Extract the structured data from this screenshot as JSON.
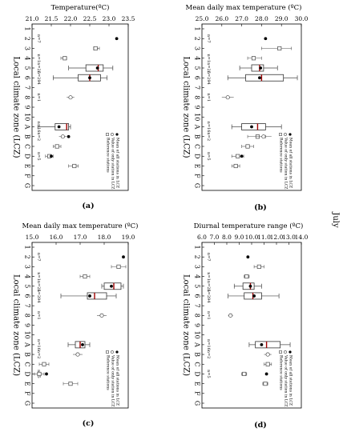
{
  "side_label": "July",
  "x_tick_labels": [
    "1",
    "2",
    "3",
    "4",
    "5",
    "6",
    "7",
    "8",
    "9",
    "10",
    "A",
    "B",
    "C",
    "D",
    "E",
    "F",
    "G"
  ],
  "chart_data": [
    {
      "type": "boxplot",
      "panel": "(a)",
      "ylabel": "Temperature(ºC)",
      "xlabel": "Local climate zone (LCZ)",
      "yticks": [
        "21.0",
        "21.5",
        "22.0",
        "22.5",
        "23.0",
        "23.5"
      ],
      "ylim": [
        21.0,
        23.5
      ],
      "legend": [
        "Mean of all stations in LCZ",
        "Value of only station in LCZ",
        "Reference stations"
      ],
      "n_labels": [
        {
          "x": "2",
          "text": "n=7"
        },
        {
          "x": "4",
          "text": "n=1"
        },
        {
          "x": "5",
          "text": "n=25"
        },
        {
          "x": "6",
          "text": "n=294"
        },
        {
          "x": "8",
          "text": "n=1"
        },
        {
          "x": "A",
          "text": "n=16"
        },
        {
          "x": "B",
          "text": "n=2"
        },
        {
          "x": "D",
          "text": "n=5"
        }
      ],
      "boxes": [
        {
          "x": "5",
          "q1": 22.4,
          "median": 22.72,
          "q3": 22.85,
          "wmin": 21.95,
          "wmax": 23.1
        },
        {
          "x": "6",
          "q1": 22.2,
          "median": 22.5,
          "q3": 22.78,
          "wmin": 21.55,
          "wmax": 22.95
        },
        {
          "x": "A",
          "q1": 21.6,
          "median": 21.9,
          "q3": 21.95,
          "wmin": 21.15,
          "wmax": 22.0
        }
      ],
      "means": [
        {
          "x": "2",
          "value": 23.2
        },
        {
          "x": "5",
          "value": 22.7
        },
        {
          "x": "6",
          "value": 22.5
        },
        {
          "x": "A",
          "value": 21.7
        },
        {
          "x": "B",
          "value": 21.95
        },
        {
          "x": "D",
          "value": 21.5
        }
      ],
      "singles": [
        {
          "x": "8",
          "value": 22.0,
          "lo": 21.9,
          "hi": 22.1
        },
        {
          "x": "B",
          "value": 21.8,
          "lo": 21.7,
          "hi": 21.9
        }
      ],
      "references": [
        {
          "x": "3",
          "value": 22.65,
          "lo": 22.6,
          "hi": 22.75
        },
        {
          "x": "4",
          "value": 21.85,
          "lo": 21.75,
          "hi": 21.9
        },
        {
          "x": "C",
          "value": 21.65,
          "lo": 21.55,
          "hi": 21.75
        },
        {
          "x": "D",
          "value": 21.45,
          "lo": 21.35,
          "hi": 21.55
        },
        {
          "x": "E",
          "value": 22.1,
          "lo": 21.95,
          "hi": 22.2
        }
      ]
    },
    {
      "type": "boxplot",
      "panel": "(b)",
      "ylabel": "Mean daily max temperature (ºC)",
      "xlabel": "Local climate zone (LCZ)",
      "yticks": [
        "25.0",
        "26.0",
        "27.0",
        "28.0",
        "29.0",
        "30.0"
      ],
      "ylim": [
        25.0,
        30.0
      ],
      "legend": [
        "Mean of all stations in LCZ",
        "Value of only station in LCZ",
        "Reference stations"
      ],
      "n_labels": [
        {
          "x": "2",
          "text": "n=7"
        },
        {
          "x": "4",
          "text": "n=1"
        },
        {
          "x": "5",
          "text": "n=25"
        },
        {
          "x": "6",
          "text": "n=294"
        },
        {
          "x": "8",
          "text": "n=1"
        },
        {
          "x": "A",
          "text": "n=16"
        },
        {
          "x": "B",
          "text": "n=2"
        },
        {
          "x": "D",
          "text": "n=5"
        }
      ],
      "boxes": [
        {
          "x": "5",
          "q1": 27.5,
          "median": 27.9,
          "q3": 28.1,
          "wmin": 26.9,
          "wmax": 28.8
        },
        {
          "x": "6",
          "q1": 27.2,
          "median": 28.0,
          "q3": 29.1,
          "wmin": 26.3,
          "wmax": 29.8
        },
        {
          "x": "A",
          "q1": 27.0,
          "median": 27.8,
          "q3": 28.2,
          "wmin": 26.5,
          "wmax": 29.0
        }
      ],
      "means": [
        {
          "x": "2",
          "value": 28.2
        },
        {
          "x": "5",
          "value": 27.95
        },
        {
          "x": "6",
          "value": 27.9
        },
        {
          "x": "A",
          "value": 27.5
        },
        {
          "x": "D",
          "value": 27.0
        }
      ],
      "singles": [
        {
          "x": "8",
          "value": 26.3,
          "lo": 26.0,
          "hi": 26.6
        },
        {
          "x": "B",
          "value": 28.1,
          "lo": 27.7,
          "hi": 28.5
        }
      ],
      "references": [
        {
          "x": "3",
          "value": 28.9,
          "lo": 28.0,
          "hi": 29.5
        },
        {
          "x": "4",
          "value": 27.6,
          "lo": 27.3,
          "hi": 28.0
        },
        {
          "x": "B",
          "value": 27.8,
          "lo": 27.3,
          "hi": 28.2
        },
        {
          "x": "C",
          "value": 27.3,
          "lo": 27.0,
          "hi": 27.6
        },
        {
          "x": "D",
          "value": 26.8,
          "lo": 26.5,
          "hi": 27.1
        },
        {
          "x": "E",
          "value": 26.7,
          "lo": 26.5,
          "hi": 26.9
        }
      ]
    },
    {
      "type": "boxplot",
      "panel": "(c)",
      "ylabel": "Mean daily max temperature (ºC)",
      "xlabel": "Local climate zone (LCZ)",
      "yticks": [
        "15.0",
        "16.0",
        "17.0",
        "18.0",
        "19.0"
      ],
      "ylim": [
        15.0,
        19.0
      ],
      "legend": [
        "Mean of all stations in LCZ",
        "Value of only station in LCZ",
        "Reference stations"
      ],
      "n_labels": [
        {
          "x": "2",
          "text": "n=7"
        },
        {
          "x": "4",
          "text": "n=1"
        },
        {
          "x": "5",
          "text": "n=25"
        },
        {
          "x": "6",
          "text": "n=294"
        },
        {
          "x": "8",
          "text": "n=1"
        },
        {
          "x": "A",
          "text": "n=16"
        },
        {
          "x": "B",
          "text": "n=2"
        },
        {
          "x": "D",
          "text": "n=5"
        }
      ],
      "boxes": [
        {
          "x": "5",
          "q1": 18.0,
          "median": 18.4,
          "q3": 18.7,
          "wmin": 17.9,
          "wmax": 18.8
        },
        {
          "x": "6",
          "q1": 17.3,
          "median": 17.6,
          "q3": 18.1,
          "wmin": 16.2,
          "wmax": 18.5
        },
        {
          "x": "A",
          "q1": 16.8,
          "median": 17.0,
          "q3": 17.2,
          "wmin": 16.5,
          "wmax": 17.4
        }
      ],
      "means": [
        {
          "x": "2",
          "value": 18.8
        },
        {
          "x": "5",
          "value": 18.3
        },
        {
          "x": "6",
          "value": 17.4
        },
        {
          "x": "A",
          "value": 17.1
        },
        {
          "x": "D",
          "value": 15.6
        }
      ],
      "singles": [
        {
          "x": "8",
          "value": 17.9,
          "lo": 17.7,
          "hi": 18.1
        },
        {
          "x": "B",
          "value": 16.9,
          "lo": 16.7,
          "hi": 17.1
        }
      ],
      "references": [
        {
          "x": "3",
          "value": 18.6,
          "lo": 18.3,
          "hi": 18.9
        },
        {
          "x": "4",
          "value": 17.2,
          "lo": 17.0,
          "hi": 17.4
        },
        {
          "x": "C",
          "value": 15.5,
          "lo": 15.3,
          "hi": 15.7
        },
        {
          "x": "D",
          "value": 15.3,
          "lo": 15.1,
          "hi": 15.5
        },
        {
          "x": "E",
          "value": 16.6,
          "lo": 16.3,
          "hi": 16.9
        }
      ]
    },
    {
      "type": "boxplot",
      "panel": "(d)",
      "ylabel": "Diurnal temperature range (ºC)",
      "xlabel": "Local climate zone (LCZ)",
      "yticks": [
        "6.0",
        "7.0",
        "8.0",
        "9.0",
        "10.0",
        "11.0",
        "12.0",
        "13.0",
        "14.0"
      ],
      "ylim": [
        6.0,
        14.0
      ],
      "legend": [
        "Mean of all stations in LCZ",
        "Value of only station in LCZ",
        "Reference stations"
      ],
      "n_labels": [
        {
          "x": "2",
          "text": "n=7"
        },
        {
          "x": "4",
          "text": "n=1"
        },
        {
          "x": "5",
          "text": "n=25"
        },
        {
          "x": "6",
          "text": "n=294"
        },
        {
          "x": "8",
          "text": "n=1"
        },
        {
          "x": "A",
          "text": "n=16"
        },
        {
          "x": "B",
          "text": "n=2"
        },
        {
          "x": "D",
          "text": "n=5"
        }
      ],
      "boxes": [
        {
          "x": "5",
          "q1": 9.3,
          "median": 9.9,
          "q3": 10.2,
          "wmin": 8.6,
          "wmax": 10.8
        },
        {
          "x": "6",
          "q1": 9.4,
          "median": 10.1,
          "q3": 10.8,
          "wmin": 8.1,
          "wmax": 12.2
        },
        {
          "x": "A",
          "q1": 10.3,
          "median": 11.2,
          "q3": 12.3,
          "wmin": 9.8,
          "wmax": 13.1
        }
      ],
      "means": [
        {
          "x": "2",
          "value": 9.7
        },
        {
          "x": "5",
          "value": 9.9
        },
        {
          "x": "6",
          "value": 10.2
        },
        {
          "x": "A",
          "value": 10.8
        },
        {
          "x": "D",
          "value": 11.2
        }
      ],
      "singles": [
        {
          "x": "8",
          "value": 8.3,
          "lo": 8.1,
          "hi": 8.5
        },
        {
          "x": "B",
          "value": 11.3,
          "lo": 11.0,
          "hi": 11.6
        }
      ],
      "references": [
        {
          "x": "3",
          "value": 10.6,
          "lo": 10.2,
          "hi": 11.0
        },
        {
          "x": "4",
          "value": 9.6,
          "lo": 9.4,
          "hi": 9.8
        },
        {
          "x": "C",
          "value": 11.3,
          "lo": 11.0,
          "hi": 11.6
        },
        {
          "x": "D",
          "value": 9.4,
          "lo": 9.2,
          "hi": 9.6
        },
        {
          "x": "E",
          "value": 11.1,
          "lo": 10.9,
          "hi": 11.3
        }
      ]
    }
  ]
}
